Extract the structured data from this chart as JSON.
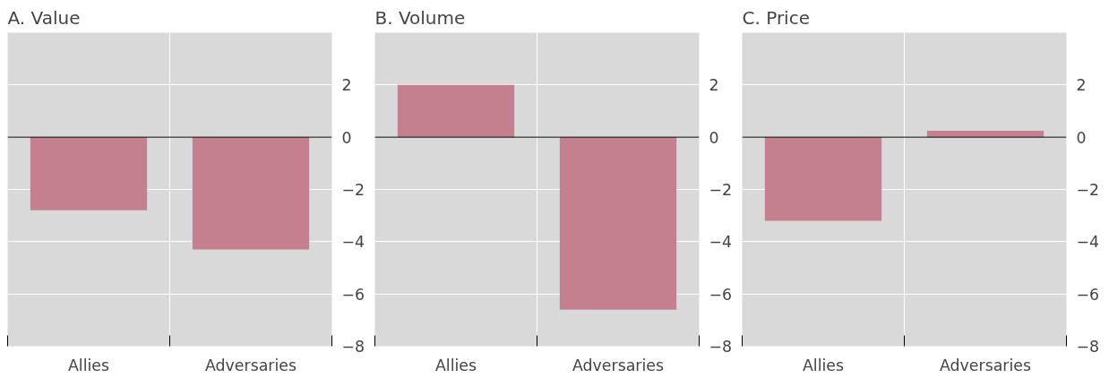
{
  "chart_data": [
    {
      "type": "bar",
      "title": "A. Value",
      "categories": [
        "Allies",
        "Adversaries"
      ],
      "values": [
        -2.8,
        -4.3
      ],
      "color": "#c4808f",
      "ylim": [
        -8,
        4
      ],
      "yticks": [
        {
          "value": -8,
          "label": "−8"
        },
        {
          "value": -6,
          "label": "−6"
        },
        {
          "value": -4,
          "label": "−4"
        },
        {
          "value": -2,
          "label": "−2"
        },
        0,
        2
      ],
      "grid": true,
      "ref_lines": [
        {
          "axis": "y",
          "value": 0,
          "color": "#000000"
        }
      ]
    },
    {
      "type": "bar",
      "title": "B. Volume",
      "categories": [
        "Allies",
        "Adversaries"
      ],
      "values": [
        2.0,
        -6.6
      ],
      "color": "#c4808f",
      "ylim": [
        -8,
        4
      ],
      "yticks": [
        {
          "value": -8,
          "label": "−8"
        },
        {
          "value": -6,
          "label": "−6"
        },
        {
          "value": -4,
          "label": "−4"
        },
        {
          "value": -2,
          "label": "−2"
        },
        0,
        2
      ],
      "grid": true,
      "ref_lines": [
        {
          "axis": "y",
          "value": 0,
          "color": "#000000"
        }
      ]
    },
    {
      "type": "bar",
      "title": "C. Price",
      "categories": [
        "Allies",
        "Adversaries"
      ],
      "values": [
        -3.2,
        0.25
      ],
      "color": "#c4808f",
      "ylim": [
        -8,
        4
      ],
      "yticks": [
        {
          "value": -8,
          "label": "−8"
        },
        {
          "value": -6,
          "label": "−6"
        },
        {
          "value": -4,
          "label": "−4"
        },
        {
          "value": -2,
          "label": "−2"
        },
        0,
        2
      ],
      "grid": true,
      "ref_lines": [
        {
          "axis": "y",
          "value": 0,
          "color": "#000000"
        }
      ]
    }
  ]
}
